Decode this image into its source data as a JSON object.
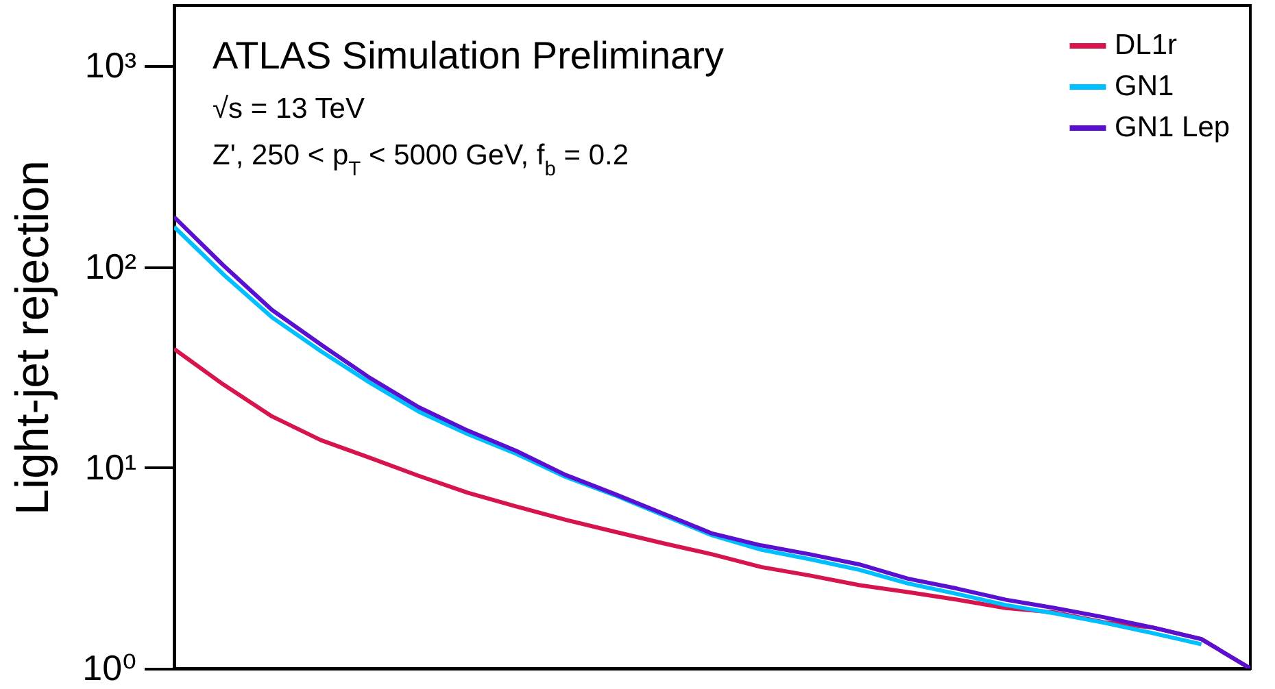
{
  "chart_data": {
    "type": "line",
    "title": "ATLAS Simulation Preliminary",
    "ylabel": "Light-jet rejection",
    "annotations": [
      "√s = 13 TeV",
      "Z', 250 < p$_{T}$ < 5000 GeV, f$_{b}$ = 0.2"
    ],
    "categories": [
      null,
      null,
      null,
      null,
      null,
      null,
      null,
      null,
      null,
      null,
      null,
      null,
      null,
      null,
      null,
      null,
      null,
      null,
      null,
      null,
      null,
      null,
      null
    ],
    "series": [
      {
        "name": "DL1r",
        "color": "#d7154d",
        "values": [
          39,
          26,
          18,
          13.7,
          11.2,
          9.1,
          7.5,
          6.4,
          5.5,
          4.8,
          4.2,
          3.7,
          3.2,
          2.9,
          2.6,
          2.4,
          2.2,
          2.0,
          1.9,
          1.7,
          1.6,
          1.4,
          1
        ]
      },
      {
        "name": "GN1",
        "color": "#00bfff",
        "values": [
          158,
          92,
          56,
          38,
          26.5,
          19,
          14.7,
          11.7,
          9.0,
          7.3,
          5.8,
          4.6,
          3.9,
          3.5,
          3.1,
          2.65,
          2.35,
          2.07,
          1.88,
          1.69,
          1.5,
          1.32,
          null
        ]
      },
      {
        "name": "GN1 Lep",
        "color": "#5a10d0",
        "values": [
          177,
          102,
          61,
          41,
          28,
          20,
          15.3,
          12.1,
          9.2,
          7.4,
          5.9,
          4.7,
          4.1,
          3.7,
          3.3,
          2.8,
          2.5,
          2.2,
          2.0,
          1.8,
          1.6,
          1.4,
          1
        ]
      }
    ],
    "log": true,
    "ylim": [
      1,
      2000
    ],
    "yticks": [
      {
        "value": 1,
        "label": "10⁰"
      },
      {
        "value": 10,
        "label": "10¹"
      },
      {
        "value": 100,
        "label": "10²"
      },
      {
        "value": 1000,
        "label": "10³"
      }
    ],
    "legend": "top right",
    "grid": false,
    "line_style": "solid",
    "marker": "none"
  }
}
